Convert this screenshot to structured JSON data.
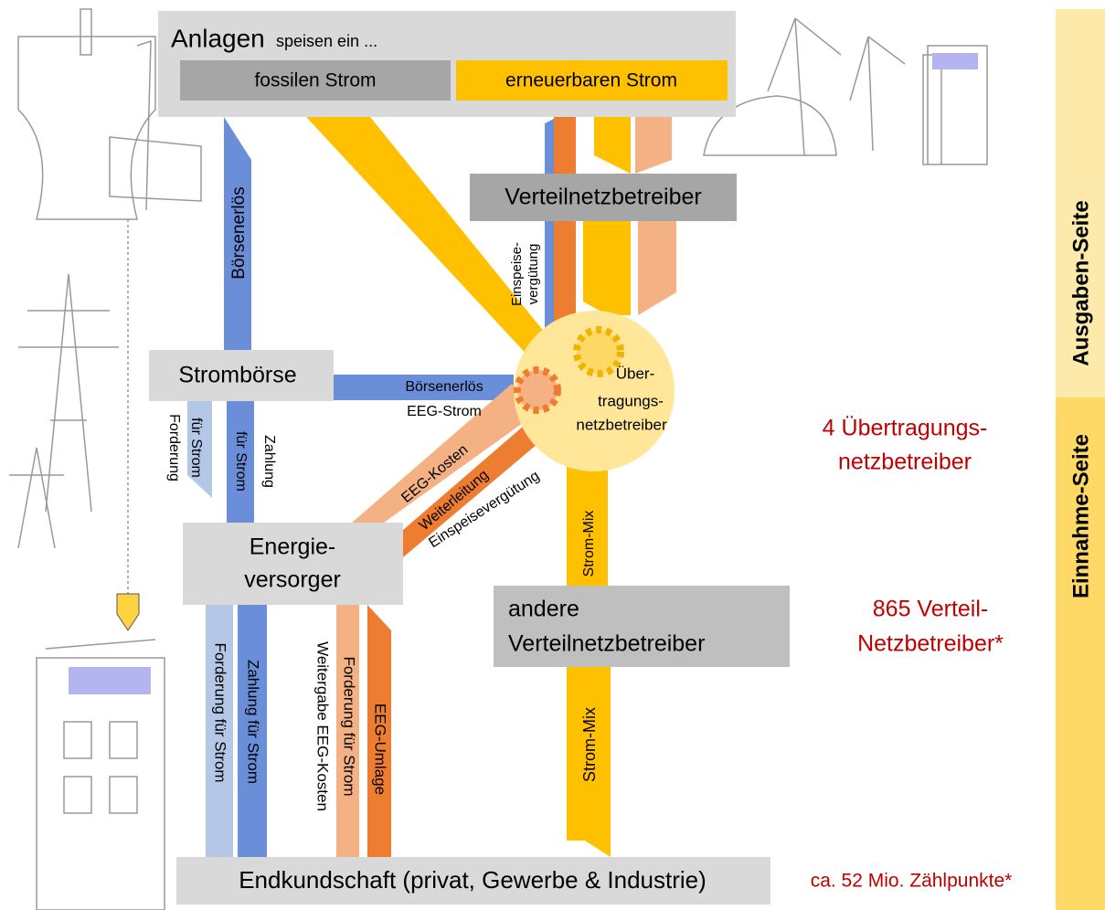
{
  "sources": {
    "title": "Anlagen",
    "subtitle": "speisen ein ...",
    "fossil": "fossilen Strom",
    "renewable": "erneuerbaren Strom"
  },
  "nodes": {
    "verteilnetzbetreiber": "Verteilnetzbetreiber",
    "stromboerse": "Strombörse",
    "uebertragungsnetzbetreiber": [
      "Über-",
      "tragungs-",
      "netzbetreiber"
    ],
    "energieversorger": [
      "Energie-",
      "versorger"
    ],
    "andere_verteilnetzbetreiber": [
      "andere",
      "Verteilnetzbetreiber"
    ],
    "endkundschaft": "Endkundschaft (privat, Gewerbe & Industrie)"
  },
  "flows": {
    "boersenerloes_top": "Börsenerlös",
    "einspeiseverguetung_top": [
      "Einspeise-",
      "vergütung"
    ],
    "boersenerloes_eeg": [
      "Börsenerlös",
      "EEG-Strom"
    ],
    "forderung_boerse": [
      "Forderung",
      "für Strom"
    ],
    "zahlung_boerse": [
      "Zahlung",
      "für Strom"
    ],
    "eeg_kosten": "EEG-Kosten",
    "weiterleitung": "Weiterleitung",
    "einspeiseverguetung": "Einspeisevergütung",
    "strom_mix_upper": "Strom-Mix",
    "strom_mix_lower": "Strom-Mix",
    "forderung_kunde": "Forderung für Strom",
    "zahlung_kunde": "Zahlung für Strom",
    "forderung_eeg": [
      "Forderung für Strom",
      "Weitergabe EEG-Kosten"
    ],
    "eeg_umlage": "EEG-Umlage"
  },
  "annotations": {
    "uenb_count": [
      "4 Übertragungs-",
      "netzbetreiber"
    ],
    "vnb_count": [
      "865 Verteil-",
      "Netzbetreiber*"
    ],
    "zaehlpunkte": "ca. 52 Mio. Zählpunkte*"
  },
  "sides": {
    "ausgaben": "Ausgaben-Seite",
    "einnahme": "Einnahme-Seite"
  }
}
